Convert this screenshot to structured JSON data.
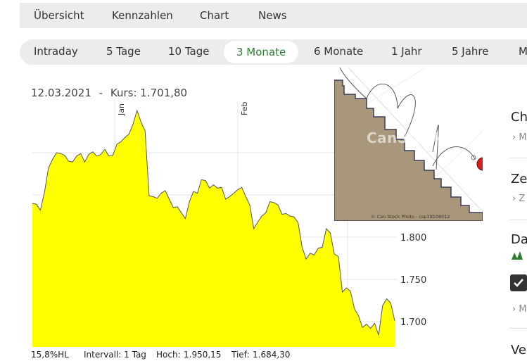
{
  "top_nav": {
    "items": [
      "Übersicht",
      "Kennzahlen",
      "Chart",
      "News"
    ]
  },
  "range_bar": {
    "options": [
      "Intraday",
      "5 Tage",
      "10 Tage",
      "3 Monate",
      "6 Monate",
      "1 Jahr",
      "5 Jahre",
      "M"
    ],
    "active": "3 Monate",
    "active_color": "#2e7d32"
  },
  "chart_header": {
    "date": "12.03.2021",
    "separator": "-",
    "kurs_label": "Kurs:",
    "kurs_value": "1.701,80"
  },
  "chart_data": {
    "type": "area",
    "fill_color": "#ffff00",
    "line_color": "#555555",
    "y_ticks": [
      "1.800",
      "1.750",
      "1.700"
    ],
    "x_ticks": [
      "Jan",
      "Feb"
    ],
    "grid": true,
    "y_unit_range": [
      1676,
      1892
    ],
    "values": [
      1840,
      1839,
      1832,
      1853,
      1882,
      1892,
      1900,
      1899,
      1897,
      1890,
      1889,
      1896,
      1899,
      1889,
      1898,
      1901,
      1896,
      1898,
      1904,
      1896,
      1897,
      1910,
      1913,
      1918,
      1922,
      1934,
      1950,
      1936,
      1926,
      1849,
      1848,
      1846,
      1852,
      1855,
      1845,
      1835,
      1836,
      1829,
      1822,
      1842,
      1854,
      1852,
      1868,
      1867,
      1858,
      1862,
      1858,
      1859,
      1845,
      1848,
      1852,
      1856,
      1859,
      1848,
      1838,
      1810,
      1818,
      1825,
      1829,
      1842,
      1841,
      1838,
      1827,
      1828,
      1825,
      1824,
      1817,
      1788,
      1774,
      1781,
      1779,
      1787,
      1788,
      1810,
      1805,
      1780,
      1777,
      1735,
      1740,
      1736,
      1715,
      1707,
      1693,
      1697,
      1692,
      1698,
      1684,
      1719,
      1727,
      1722,
      1701
    ]
  },
  "footer": {
    "hl": "15,8%HL",
    "intervall": "Intervall: 1 Tag",
    "hoch_label": "Hoch:",
    "hoch_value": "1.950,15",
    "tief_label": "Tief:",
    "tief_value": "1.684,30"
  },
  "photo": {
    "watermark": "CanStock",
    "credit": "© Can Stock Photo - csp19108012"
  },
  "sidebar": {
    "headings": [
      "Ch",
      "Ze",
      "Da",
      "Ve"
    ],
    "subs": [
      "M",
      "Z",
      "M"
    ]
  }
}
